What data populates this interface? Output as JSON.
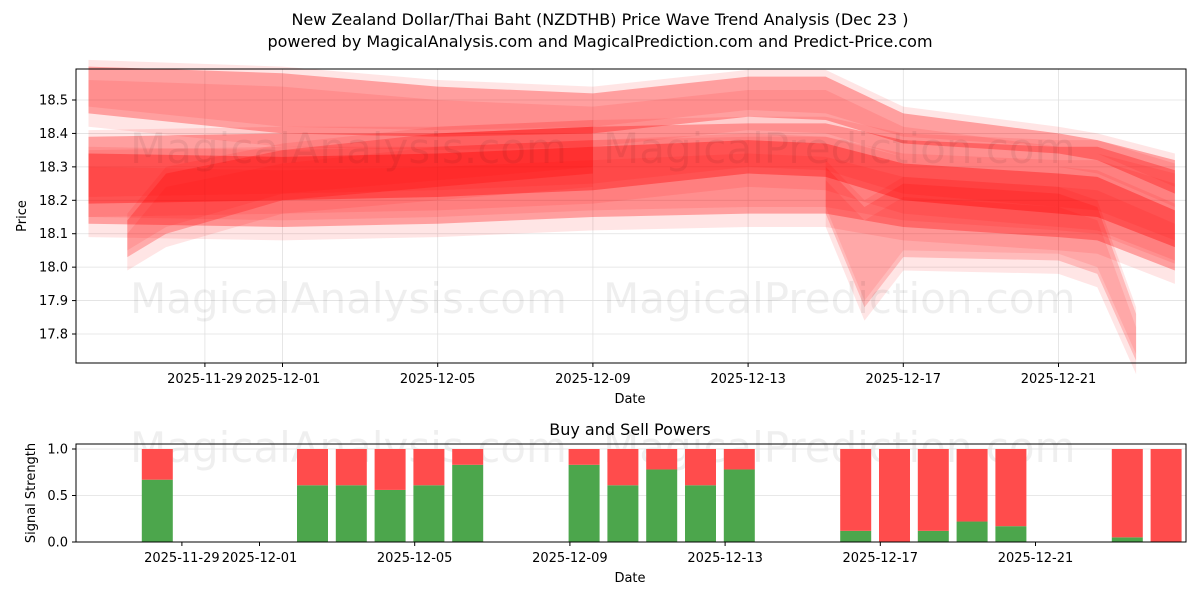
{
  "header": {
    "title": "New Zealand Dollar/Thai Baht (NZDTHB) Price Wave Trend Analysis (Dec 23 )",
    "subtitle": "powered by MagicalAnalysis.com and MagicalPrediction.com and Predict-Price.com"
  },
  "watermarks": [
    "MagicalAnalysis.com",
    "MagicalPrediction.com"
  ],
  "colors": {
    "wave": "#ff0000",
    "buy": "#4ca64c",
    "sell": "#ff4c4c",
    "grid": "#e0e0e0"
  },
  "chart_data": [
    {
      "type": "area",
      "title": "",
      "xlabel": "Date",
      "ylabel": "Price",
      "ylim": [
        17.72,
        18.59
      ],
      "yticks": [
        17.8,
        17.9,
        18.0,
        18.1,
        18.2,
        18.3,
        18.4,
        18.5
      ],
      "xticks": [
        "2025-11-29",
        "2025-12-01",
        "2025-12-05",
        "2025-12-09",
        "2025-12-13",
        "2025-12-17",
        "2025-12-21"
      ],
      "grid": true,
      "description": "Overlapping translucent red wave bands showing projected price trend ranges",
      "series": [
        {
          "name": "wave-upper-band",
          "x": [
            "2025-11-26",
            "2025-12-01",
            "2025-12-05",
            "2025-12-09",
            "2025-12-13",
            "2025-12-15",
            "2025-12-17",
            "2025-12-21",
            "2025-12-22",
            "2025-12-24"
          ],
          "upper": [
            18.6,
            18.58,
            18.54,
            18.52,
            18.57,
            18.57,
            18.46,
            18.4,
            18.38,
            18.32
          ],
          "lower": [
            18.46,
            18.4,
            18.39,
            18.4,
            18.45,
            18.44,
            18.37,
            18.34,
            18.32,
            18.22
          ]
        },
        {
          "name": "wave-wide-band",
          "x": [
            "2025-11-26",
            "2025-12-01",
            "2025-12-05",
            "2025-12-09",
            "2025-12-13",
            "2025-12-15",
            "2025-12-17",
            "2025-12-21",
            "2025-12-22",
            "2025-12-24"
          ],
          "upper": [
            18.39,
            18.4,
            18.4,
            18.42,
            18.43,
            18.43,
            18.38,
            18.36,
            18.36,
            18.29
          ],
          "lower": [
            18.13,
            18.12,
            18.13,
            18.15,
            18.16,
            18.16,
            18.12,
            18.09,
            18.08,
            17.99
          ]
        },
        {
          "name": "wave-core-band",
          "x": [
            "2025-11-26",
            "2025-12-01",
            "2025-12-05",
            "2025-12-09",
            "2025-12-13",
            "2025-12-15",
            "2025-12-17",
            "2025-12-21",
            "2025-12-22",
            "2025-12-24"
          ],
          "upper": [
            18.34,
            18.33,
            18.34,
            18.36,
            18.38,
            18.37,
            18.31,
            18.28,
            18.27,
            18.17
          ],
          "lower": [
            18.19,
            18.2,
            18.21,
            18.23,
            18.28,
            18.27,
            18.2,
            18.16,
            18.15,
            18.06
          ]
        },
        {
          "name": "wave-early-dip",
          "x": [
            "2025-11-27",
            "2025-11-28",
            "2025-12-01",
            "2025-12-05",
            "2025-12-09"
          ],
          "upper": [
            18.14,
            18.28,
            18.35,
            18.4,
            18.42
          ],
          "lower": [
            18.03,
            18.1,
            18.2,
            18.24,
            18.28
          ]
        },
        {
          "name": "wave-late-drop",
          "x": [
            "2025-12-15",
            "2025-12-16",
            "2025-12-17",
            "2025-12-21",
            "2025-12-22",
            "2025-12-23"
          ],
          "upper": [
            18.3,
            18.18,
            18.25,
            18.22,
            18.18,
            17.86
          ],
          "lower": [
            18.16,
            17.88,
            18.03,
            18.02,
            17.98,
            17.72
          ]
        }
      ]
    },
    {
      "type": "bar",
      "title": "Buy and Sell Powers",
      "xlabel": "Date",
      "ylabel": "Signal Strength",
      "ylim": [
        0,
        1.05
      ],
      "yticks": [
        0.0,
        0.5,
        1.0
      ],
      "xticks": [
        "2025-11-29",
        "2025-12-01",
        "2025-12-05",
        "2025-12-09",
        "2025-12-13",
        "2025-12-17",
        "2025-12-21"
      ],
      "grid": true,
      "stacked": true,
      "categories": [
        "2025-11-27",
        "2025-12-01",
        "2025-12-02",
        "2025-12-03",
        "2025-12-04",
        "2025-12-05",
        "2025-12-08",
        "2025-12-09",
        "2025-12-10",
        "2025-12-11",
        "2025-12-12",
        "2025-12-15",
        "2025-12-16",
        "2025-12-17",
        "2025-12-18",
        "2025-12-19",
        "2025-12-22",
        "2025-12-23"
      ],
      "series": [
        {
          "name": "Buy",
          "color": "#4ca64c",
          "values": [
            0.67,
            0.61,
            0.61,
            0.56,
            0.61,
            0.83,
            0.83,
            0.61,
            0.78,
            0.61,
            0.78,
            0.12,
            0.0,
            0.12,
            0.22,
            0.17,
            0.05,
            0.0
          ]
        },
        {
          "name": "Sell",
          "color": "#ff4c4c",
          "values": [
            0.33,
            0.39,
            0.39,
            0.44,
            0.39,
            0.17,
            0.17,
            0.39,
            0.22,
            0.39,
            0.22,
            0.88,
            1.0,
            0.88,
            0.78,
            0.83,
            0.95,
            1.0
          ]
        }
      ]
    }
  ]
}
